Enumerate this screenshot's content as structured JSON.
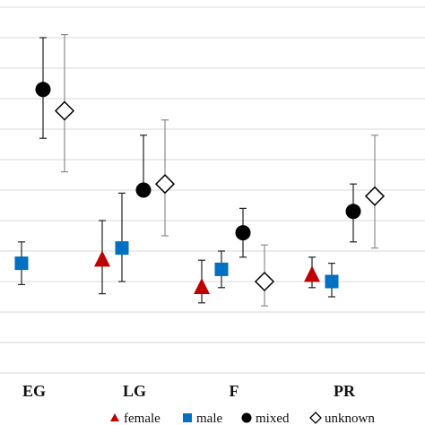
{
  "chart_data": {
    "type": "scatter",
    "title": "",
    "xlabel": "",
    "ylabel": "",
    "categories": [
      "EG",
      "LG",
      "F",
      "PR"
    ],
    "ylim": [
      0,
      12
    ],
    "grid": true,
    "error_bars": true,
    "legend_position": "bottom",
    "series": [
      {
        "name": "female",
        "marker": "triangle",
        "color": "#c00000",
        "points": [
          {
            "category": "LG",
            "y": 3.7,
            "low": 2.6,
            "high": 5.0
          },
          {
            "category": "F",
            "y": 2.8,
            "low": 2.3,
            "high": 3.7
          },
          {
            "category": "PR",
            "y": 3.2,
            "low": 2.8,
            "high": 3.8
          }
        ]
      },
      {
        "name": "male",
        "marker": "square",
        "color": "#0070c0",
        "points": [
          {
            "category": "EG",
            "y": 3.6,
            "low": 2.9,
            "high": 4.3
          },
          {
            "category": "LG",
            "y": 4.1,
            "low": 3.0,
            "high": 5.9
          },
          {
            "category": "F",
            "y": 3.4,
            "low": 2.8,
            "high": 4.0
          },
          {
            "category": "PR",
            "y": 3.0,
            "low": 2.5,
            "high": 3.6
          }
        ]
      },
      {
        "name": "mixed",
        "marker": "circle",
        "color": "#000000",
        "points": [
          {
            "category": "EG",
            "y": 9.3,
            "low": 7.7,
            "high": 11.0
          },
          {
            "category": "LG",
            "y": 6.0,
            "low": null,
            "high": 7.8
          },
          {
            "category": "F",
            "y": 4.6,
            "low": 3.8,
            "high": 5.4
          },
          {
            "category": "PR",
            "y": 5.3,
            "low": 4.3,
            "high": 6.2
          }
        ]
      },
      {
        "name": "unknown",
        "marker": "diamond",
        "color": "#000000",
        "points": [
          {
            "category": "EG",
            "y": 8.6,
            "low": 6.6,
            "high": 11.1
          },
          {
            "category": "LG",
            "y": 6.2,
            "low": 4.5,
            "high": 8.3
          },
          {
            "category": "F",
            "y": 3.0,
            "low": 2.2,
            "high": 4.2
          },
          {
            "category": "PR",
            "y": 5.8,
            "low": 4.1,
            "high": 7.8
          }
        ]
      }
    ]
  }
}
